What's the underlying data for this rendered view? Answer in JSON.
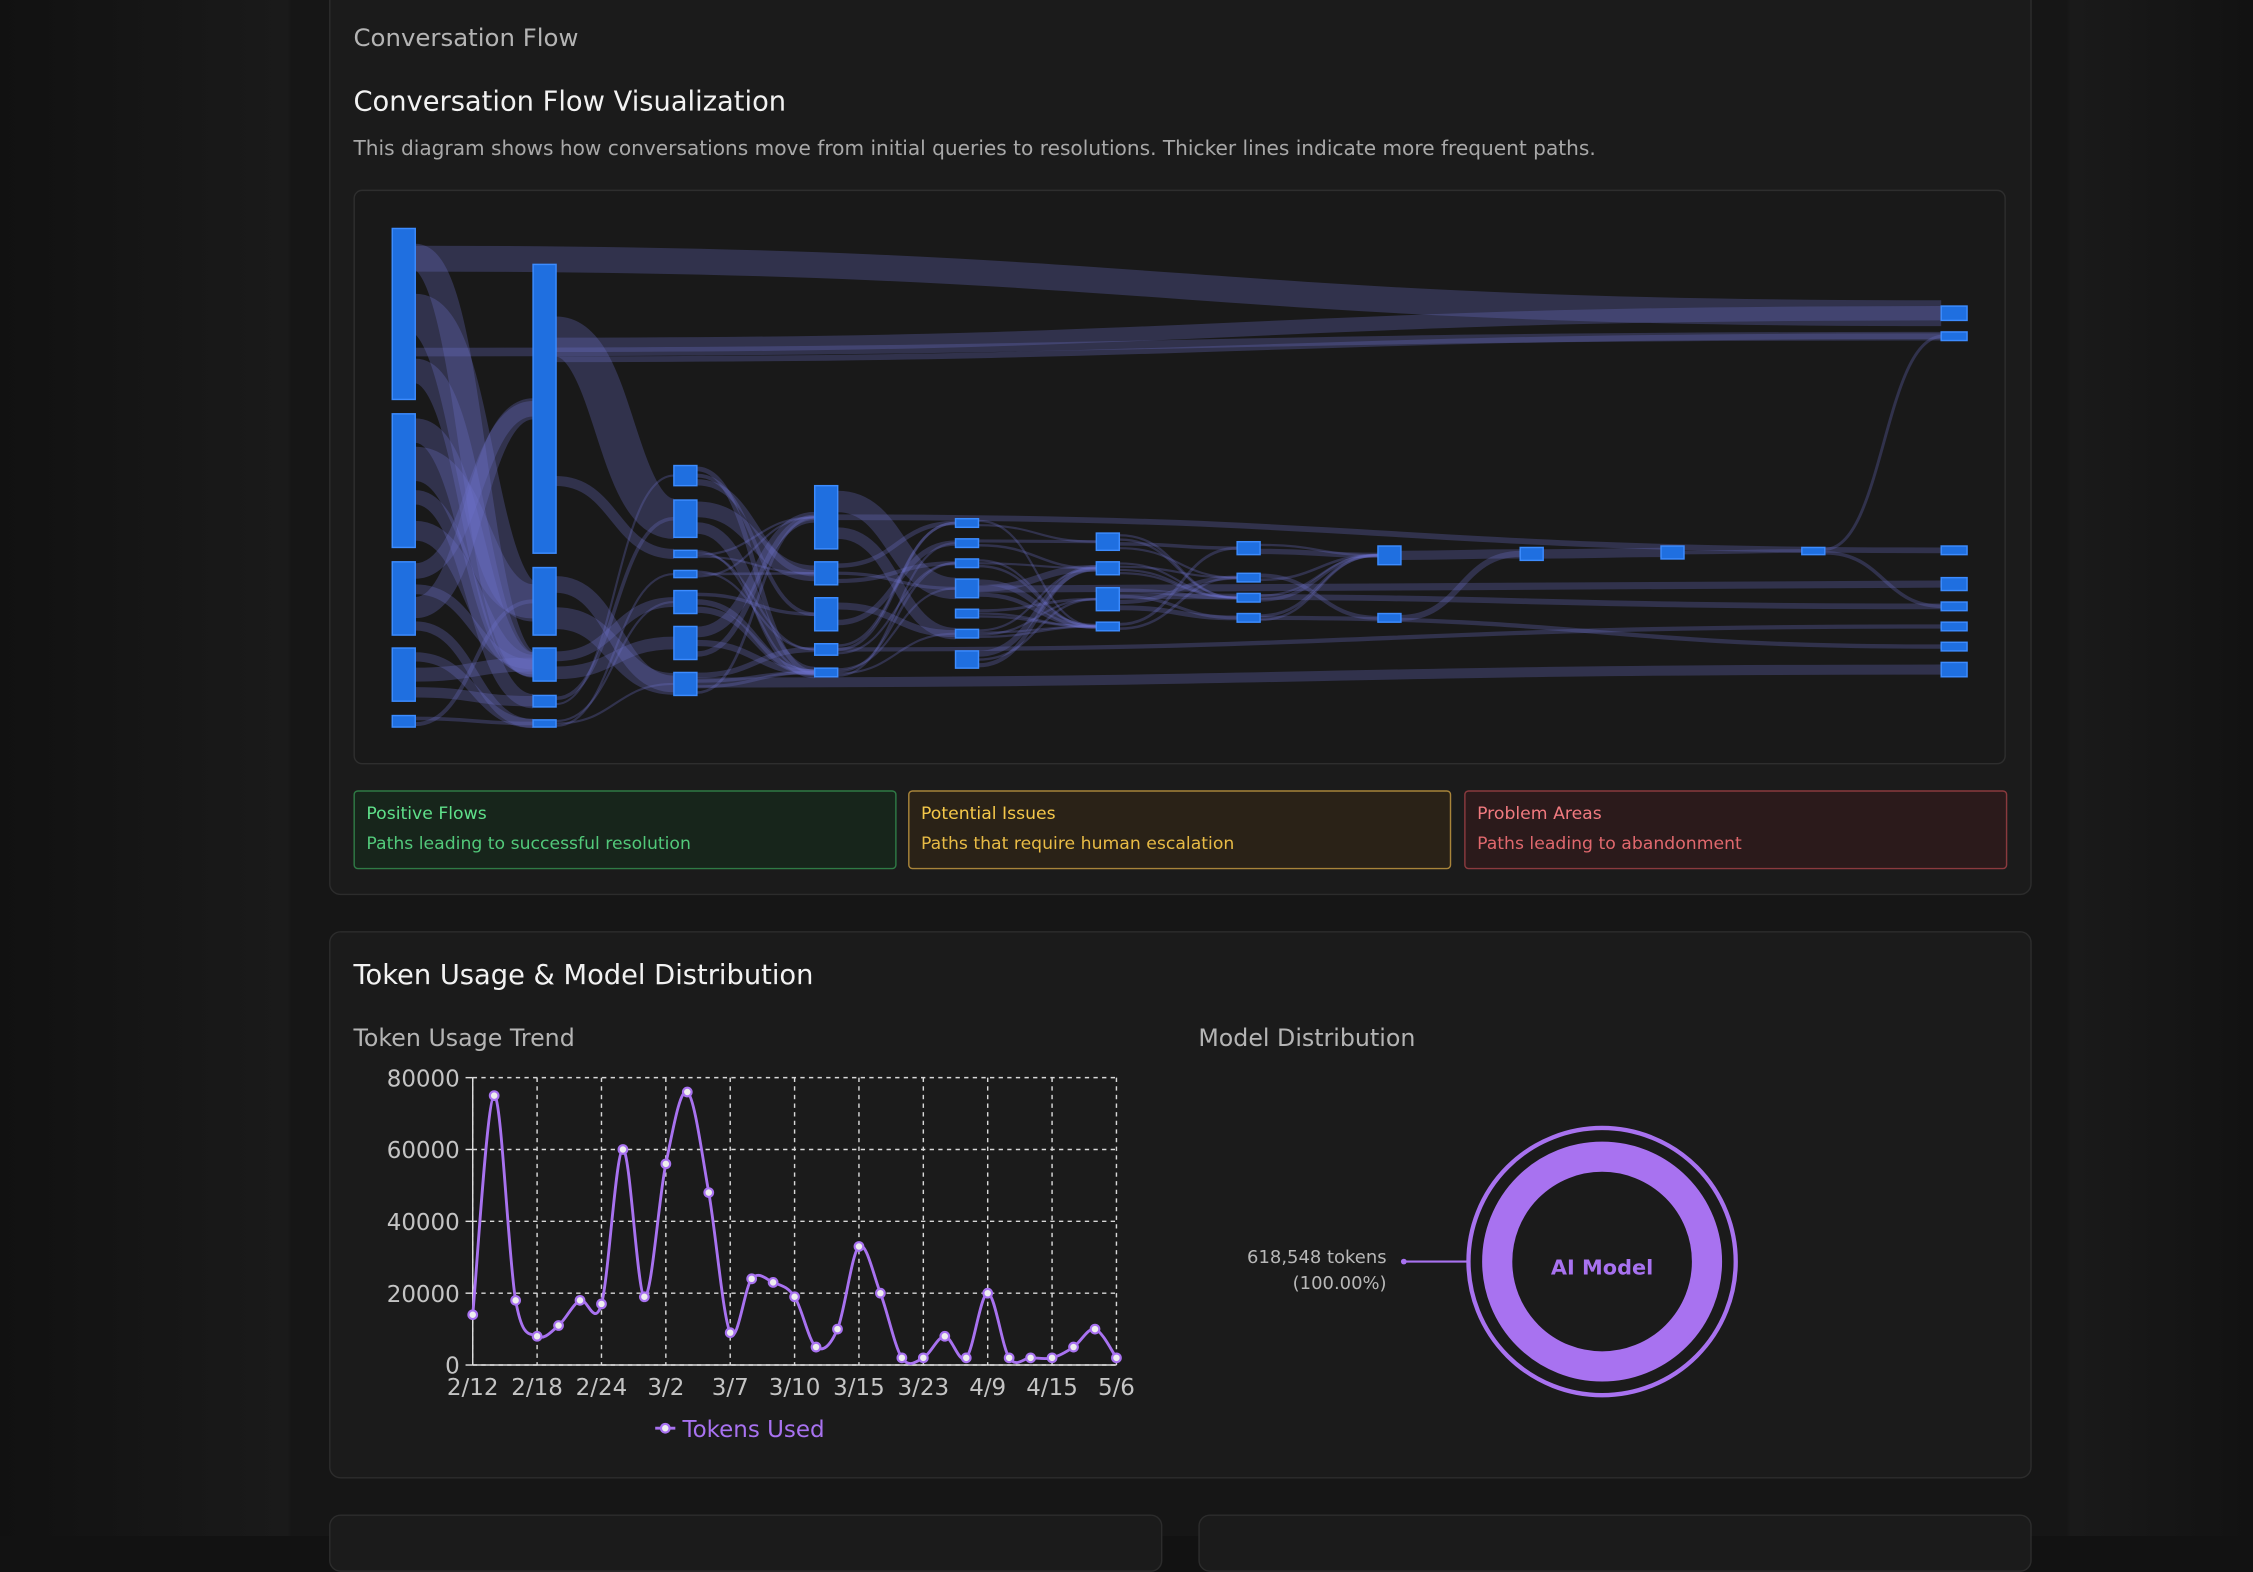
{
  "header": {
    "section_label": "Conversation Flow",
    "title": "Conversation Flow Visualization",
    "description": "This diagram shows how conversations move from initial queries to resolutions. Thicker lines indicate more frequent paths."
  },
  "flow_legend": [
    {
      "title": "Positive Flows",
      "text": "Paths leading to successful resolution"
    },
    {
      "title": "Potential Issues",
      "text": "Paths that require human escalation"
    },
    {
      "title": "Problem Areas",
      "text": "Paths leading to abandonment"
    }
  ],
  "token_section": {
    "title": "Token Usage & Model Distribution"
  },
  "chart_data": [
    {
      "type": "line",
      "title": "Token Usage Trend",
      "categories": [
        "2/12",
        null,
        null,
        "2/18",
        null,
        null,
        "2/24",
        null,
        null,
        "3/2",
        null,
        null,
        "3/7",
        null,
        null,
        "3/10",
        null,
        null,
        "3/15",
        null,
        null,
        "3/23",
        null,
        null,
        "4/9",
        null,
        null,
        "4/15",
        null,
        null,
        "5/6"
      ],
      "series": [
        {
          "name": "Tokens Used",
          "color": "#a872f0",
          "values": [
            14000,
            75000,
            18000,
            8000,
            11000,
            18000,
            17000,
            60000,
            19000,
            56000,
            76000,
            48000,
            9000,
            24000,
            23000,
            19000,
            5000,
            10000,
            33000,
            20000,
            2000,
            2000,
            8000,
            2000,
            20000,
            2000,
            2000,
            2000,
            5000,
            10000,
            2000
          ]
        }
      ],
      "ylim": [
        0,
        80000
      ],
      "yticks": [
        0,
        20000,
        40000,
        60000,
        80000
      ],
      "grid": true,
      "legend": "bottom"
    },
    {
      "type": "pie",
      "title": "Model Distribution",
      "categories": [
        "AI Model"
      ],
      "values": [
        618548
      ],
      "value_labels": [
        "618,548 tokens"
      ],
      "percents": [
        100
      ],
      "percent_labels": [
        "(100.00%)"
      ],
      "color": "#a872f0",
      "donut": true
    }
  ]
}
